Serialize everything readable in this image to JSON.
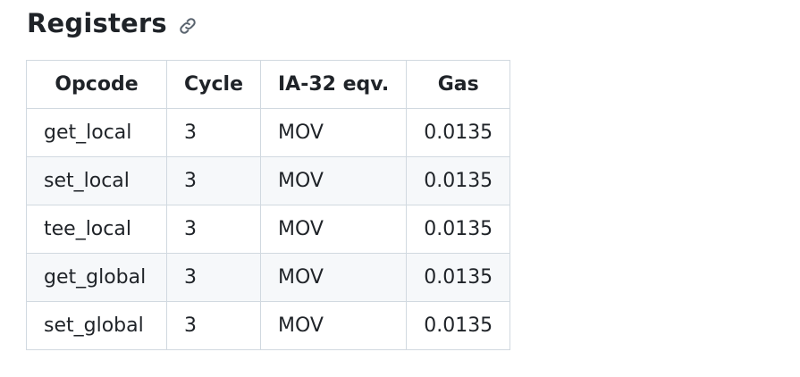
{
  "section": {
    "title": "Registers",
    "anchor_icon": "link-icon"
  },
  "table": {
    "headers": [
      "Opcode",
      "Cycle",
      "IA-32 eqv.",
      "Gas"
    ],
    "rows": [
      {
        "opcode": "get_local",
        "cycle": "3",
        "ia32": "MOV",
        "gas": "0.0135"
      },
      {
        "opcode": "set_local",
        "cycle": "3",
        "ia32": "MOV",
        "gas": "0.0135"
      },
      {
        "opcode": "tee_local",
        "cycle": "3",
        "ia32": "MOV",
        "gas": "0.0135"
      },
      {
        "opcode": "get_global",
        "cycle": "3",
        "ia32": "MOV",
        "gas": "0.0135"
      },
      {
        "opcode": "set_global",
        "cycle": "3",
        "ia32": "MOV",
        "gas": "0.0135"
      }
    ]
  },
  "colors": {
    "text": "#1f2328",
    "border": "#d1d9e0",
    "stripe": "#f6f8fa",
    "icon": "#59636e"
  }
}
